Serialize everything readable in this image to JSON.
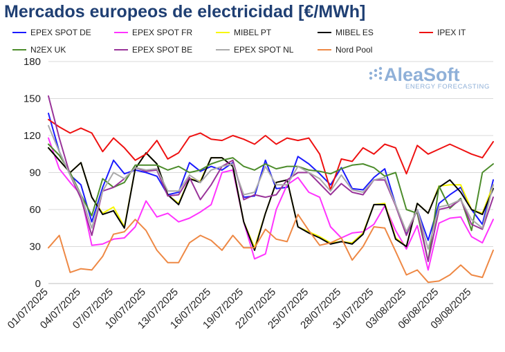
{
  "chart_data": {
    "type": "line",
    "title": "Mercados europeos de electricidad [€/MWh]",
    "xlabel": "",
    "ylabel": "",
    "ylim": [
      0,
      180
    ],
    "yticks": [
      0,
      30,
      60,
      90,
      120,
      150,
      180
    ],
    "grid": "horizontal",
    "legend_position": "top",
    "x": [
      "01/07/2025",
      "02/07/2025",
      "03/07/2025",
      "04/07/2025",
      "05/07/2025",
      "06/07/2025",
      "07/07/2025",
      "08/07/2025",
      "09/07/2025",
      "10/07/2025",
      "11/07/2025",
      "12/07/2025",
      "13/07/2025",
      "14/07/2025",
      "15/07/2025",
      "16/07/2025",
      "17/07/2025",
      "18/07/2025",
      "19/07/2025",
      "20/07/2025",
      "21/07/2025",
      "22/07/2025",
      "23/07/2025",
      "24/07/2025",
      "25/07/2025",
      "26/07/2025",
      "27/07/2025",
      "28/07/2025",
      "29/07/2025",
      "30/07/2025",
      "31/07/2025",
      "01/08/2025",
      "02/08/2025",
      "03/08/2025",
      "04/08/2025",
      "05/08/2025",
      "06/08/2025",
      "07/08/2025",
      "08/08/2025",
      "09/08/2025",
      "10/08/2025",
      "11/08/2025"
    ],
    "xtick_labels": [
      "01/07/2025",
      "04/07/2025",
      "07/07/2025",
      "10/07/2025",
      "13/07/2025",
      "16/07/2025",
      "19/07/2025",
      "22/07/2025",
      "25/07/2025",
      "28/07/2025",
      "31/07/2025",
      "03/08/2025",
      "06/08/2025",
      "09/08/2025"
    ],
    "series": [
      {
        "name": "EPEX SPOT DE",
        "color": "#1a1aff",
        "values": [
          138,
          107,
          88,
          80,
          50,
          78,
          100,
          89,
          92,
          90,
          87,
          72,
          74,
          98,
          91,
          95,
          92,
          98,
          70,
          71,
          100,
          77,
          78,
          103,
          97,
          89,
          80,
          94,
          77,
          76,
          86,
          93,
          64,
          40,
          60,
          35,
          65,
          72,
          78,
          60,
          48,
          84
        ]
      },
      {
        "name": "EPEX SPOT FR",
        "color": "#ff33ff",
        "values": [
          118,
          93,
          82,
          72,
          31,
          32,
          36,
          37,
          46,
          67,
          54,
          57,
          50,
          53,
          58,
          64,
          90,
          92,
          50,
          20,
          24,
          60,
          80,
          86,
          74,
          70,
          46,
          37,
          41,
          42,
          48,
          63,
          43,
          28,
          47,
          11,
          49,
          53,
          54,
          38,
          33,
          52
        ]
      },
      {
        "name": "MIBEL PT",
        "color": "#f7f700",
        "values": [
          110,
          100,
          90,
          98,
          70,
          57,
          62,
          46,
          93,
          106,
          97,
          72,
          65,
          85,
          83,
          102,
          102,
          95,
          50,
          29,
          57,
          82,
          84,
          46,
          42,
          38,
          33,
          34,
          33,
          41,
          64,
          65,
          37,
          30,
          65,
          57,
          79,
          80,
          80,
          60,
          57,
          80
        ]
      },
      {
        "name": "MIBEL ES",
        "color": "#000000",
        "values": [
          110,
          100,
          90,
          98,
          70,
          56,
          59,
          45,
          93,
          106,
          97,
          72,
          64,
          85,
          82,
          102,
          102,
          95,
          50,
          27,
          57,
          82,
          84,
          46,
          41,
          37,
          32,
          34,
          32,
          40,
          64,
          64,
          36,
          30,
          65,
          57,
          78,
          84,
          74,
          60,
          56,
          77
        ]
      },
      {
        "name": "IPEX IT",
        "color": "#ee1111",
        "values": [
          133,
          127,
          122,
          126,
          122,
          107,
          118,
          110,
          100,
          105,
          116,
          101,
          106,
          119,
          122,
          117,
          116,
          120,
          117,
          113,
          120,
          113,
          118,
          116,
          118,
          105,
          76,
          101,
          99,
          110,
          105,
          113,
          110,
          89,
          112,
          105,
          109,
          113,
          109,
          105,
          102,
          115
        ]
      },
      {
        "name": "N2EX UK",
        "color": "#4c8c2b",
        "values": [
          113,
          104,
          90,
          72,
          55,
          85,
          78,
          82,
          96,
          96,
          96,
          92,
          95,
          90,
          92,
          97,
          100,
          102,
          95,
          92,
          97,
          93,
          95,
          95,
          92,
          91,
          89,
          93,
          96,
          97,
          94,
          87,
          90,
          60,
          57,
          18,
          79,
          61,
          69,
          43,
          90,
          97
        ]
      },
      {
        "name": "EPEX SPOT BE",
        "color": "#993399",
        "values": [
          152,
          118,
          88,
          69,
          39,
          75,
          78,
          85,
          94,
          91,
          92,
          71,
          72,
          86,
          68,
          80,
          95,
          100,
          68,
          72,
          70,
          72,
          84,
          90,
          90,
          81,
          72,
          81,
          74,
          72,
          84,
          84,
          63,
          39,
          60,
          18,
          60,
          62,
          68,
          48,
          44,
          70
        ]
      },
      {
        "name": "EPEX SPOT NL",
        "color": "#aaaaaa",
        "values": [
          128,
          107,
          88,
          72,
          45,
          75,
          90,
          85,
          94,
          92,
          93,
          75,
          75,
          88,
          82,
          92,
          95,
          97,
          72,
          74,
          95,
          80,
          80,
          95,
          90,
          85,
          75,
          88,
          76,
          74,
          84,
          86,
          64,
          42,
          60,
          28,
          62,
          64,
          68,
          52,
          45,
          80
        ]
      },
      {
        "name": "Nord Pool",
        "color": "#ee8844",
        "values": [
          29,
          39,
          9,
          12,
          11,
          22,
          40,
          42,
          52,
          43,
          27,
          17,
          17,
          33,
          39,
          35,
          27,
          39,
          29,
          29,
          44,
          36,
          34,
          56,
          43,
          31,
          33,
          37,
          19,
          30,
          46,
          45,
          26,
          7,
          11,
          1,
          2,
          7,
          15,
          7,
          5,
          27
        ]
      }
    ]
  },
  "watermark": {
    "brand": "AleaSoft",
    "tagline": "ENERGY FORECASTING"
  }
}
